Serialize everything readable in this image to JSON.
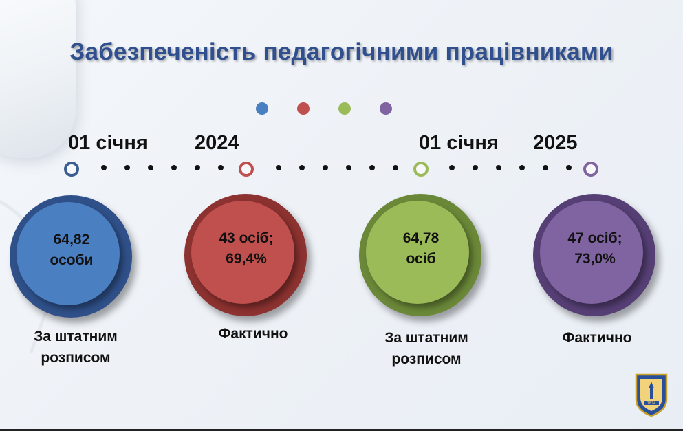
{
  "slide": {
    "title": "Забезпеченість педагогічними працівниками"
  },
  "colors": {
    "blue": "#4a7fc1",
    "red": "#c0504d",
    "green": "#9bbb59",
    "purple": "#8064a2",
    "title": "#2f4f8f"
  },
  "periods": [
    {
      "day": "01 січня",
      "year": "2024"
    },
    {
      "day": "01 січня",
      "year": "2025"
    }
  ],
  "items": [
    {
      "value_line1": "64,82",
      "value_line2": "особи",
      "caption_line1": "За штатним",
      "caption_line2": "розписом",
      "color": "blue"
    },
    {
      "value_line1": "43 осіб;",
      "value_line2": "69,4%",
      "caption_line1": "Фактично",
      "caption_line2": "",
      "color": "red"
    },
    {
      "value_line1": "64,78",
      "value_line2": "осіб",
      "caption_line1": "За штатним",
      "caption_line2": "розписом",
      "color": "green"
    },
    {
      "value_line1": "47 осіб;",
      "value_line2": "73,0%",
      "caption_line1": "Фактично",
      "caption_line2": "",
      "color": "purple"
    }
  ],
  "logo": {
    "year_text": "1874",
    "icon": "university-emblem-icon"
  }
}
